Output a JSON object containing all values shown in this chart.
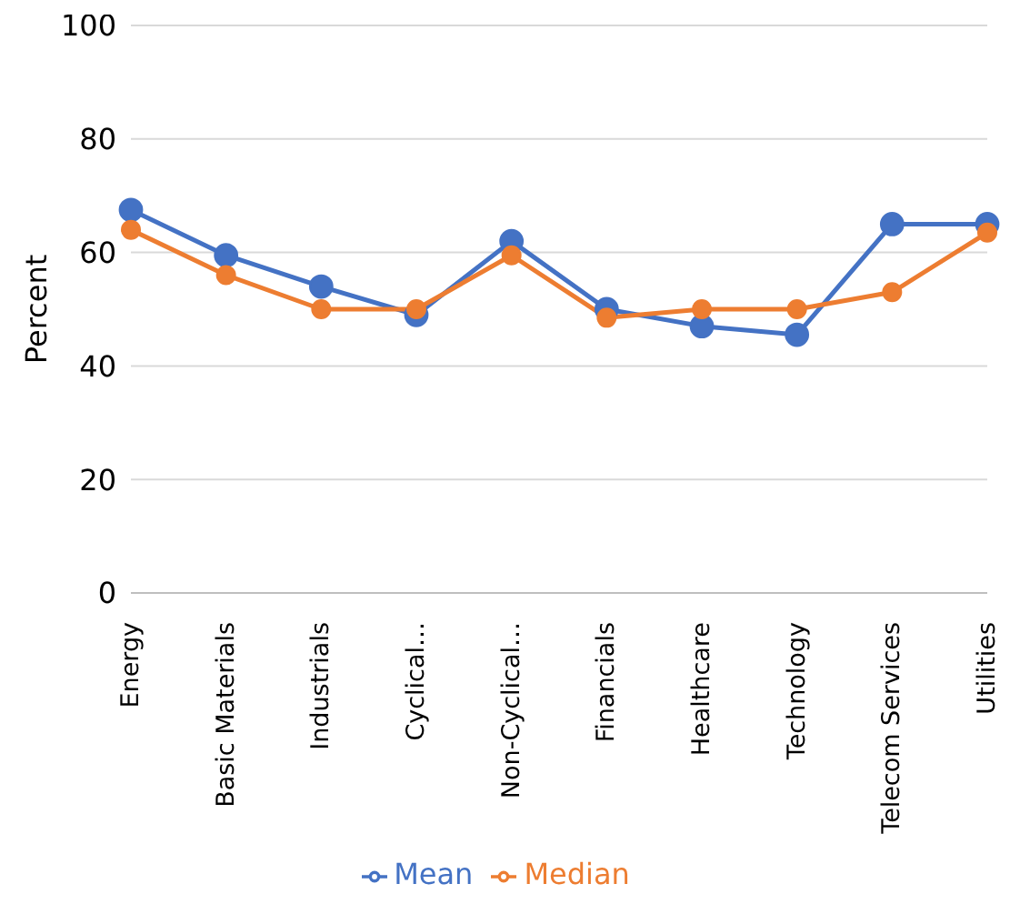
{
  "chart_data": {
    "type": "line",
    "ylabel": "Percent",
    "categories": [
      "Energy",
      "Basic Materials",
      "Industrials",
      "Cyclical…",
      "Non-Cyclical…",
      "Financials",
      "Healthcare",
      "Technology",
      "Telecom Services",
      "Utilities"
    ],
    "series": [
      {
        "name": "Mean",
        "color": "#4472c4",
        "values": [
          67.5,
          59.5,
          54,
          49,
          62,
          50,
          47,
          45.5,
          65,
          65
        ]
      },
      {
        "name": "Median",
        "color": "#ed7d31",
        "values": [
          64,
          56,
          50,
          50,
          59.5,
          48.5,
          50,
          50,
          53,
          63.5
        ]
      }
    ],
    "ylim": [
      0,
      100
    ],
    "yticks": [
      0,
      20,
      40,
      60,
      80,
      100
    ],
    "grid": "y",
    "legend": "bottom",
    "marker": "circle",
    "line_style": "solid"
  }
}
